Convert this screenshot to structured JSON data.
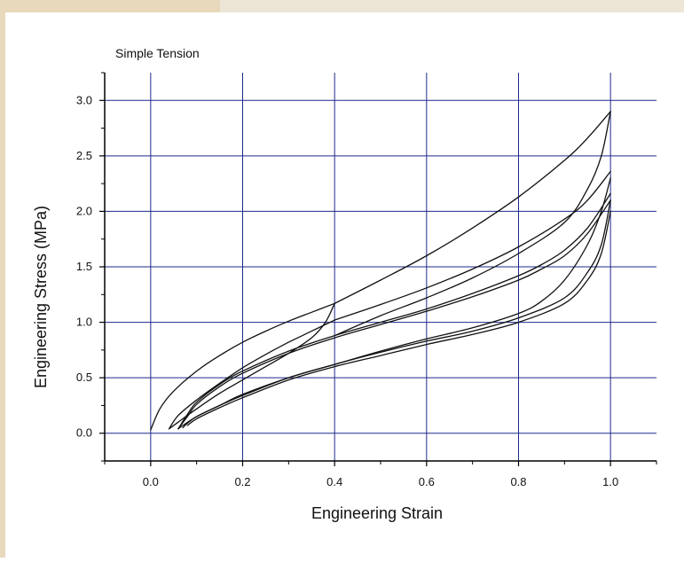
{
  "colors": {
    "frame": "#e8d8bc",
    "grid": "#1e2a8c",
    "curve": "#111111",
    "background": "#ffffff"
  },
  "chart_data": {
    "type": "line",
    "title": "Simple Tension",
    "xlabel": "Engineering Strain",
    "ylabel": "Engineering Stress (MPa)",
    "xlim": [
      -0.1,
      1.1
    ],
    "ylim": [
      -0.25,
      3.25
    ],
    "x_ticks": [
      0.0,
      0.2,
      0.4,
      0.6,
      0.8,
      1.0
    ],
    "x_tick_labels": [
      "0.0",
      "0.2",
      "0.4",
      "0.6",
      "0.8",
      "1.0"
    ],
    "y_ticks": [
      0.0,
      0.5,
      1.0,
      1.5,
      2.0,
      2.5,
      3.0
    ],
    "y_tick_labels": [
      "0.0",
      "0.5",
      "1.0",
      "1.5",
      "2.0",
      "2.5",
      "3.0"
    ],
    "grid": true,
    "series": [
      {
        "x": [
          0.0,
          0.02,
          0.05,
          0.1,
          0.15,
          0.2,
          0.25,
          0.3,
          0.35,
          0.4
        ],
        "y": [
          0.03,
          0.22,
          0.38,
          0.56,
          0.7,
          0.82,
          0.92,
          1.01,
          1.09,
          1.17
        ]
      },
      {
        "x": [
          0.4,
          0.5,
          0.6,
          0.7,
          0.8,
          0.9,
          0.95,
          1.0
        ],
        "y": [
          1.17,
          1.38,
          1.6,
          1.85,
          2.13,
          2.46,
          2.66,
          2.9
        ]
      },
      {
        "x": [
          1.0,
          0.98,
          0.95,
          0.9,
          0.8,
          0.7,
          0.6,
          0.5,
          0.4
        ],
        "y": [
          2.9,
          2.5,
          2.2,
          1.9,
          1.62,
          1.4,
          1.22,
          1.06,
          0.88
        ]
      },
      {
        "x": [
          0.4,
          0.38,
          0.35,
          0.3,
          0.25,
          0.2,
          0.15,
          0.1,
          0.06,
          0.04
        ],
        "y": [
          1.17,
          1.0,
          0.86,
          0.72,
          0.6,
          0.48,
          0.36,
          0.22,
          0.1,
          0.04
        ]
      },
      {
        "x": [
          0.04,
          0.06,
          0.1,
          0.15,
          0.2,
          0.25,
          0.3,
          0.35,
          0.4
        ],
        "y": [
          0.04,
          0.16,
          0.3,
          0.45,
          0.59,
          0.71,
          0.82,
          0.92,
          1.02
        ]
      },
      {
        "x": [
          0.4,
          0.5,
          0.6,
          0.7,
          0.8,
          0.9,
          0.95,
          1.0
        ],
        "y": [
          1.02,
          1.16,
          1.31,
          1.48,
          1.68,
          1.93,
          2.1,
          2.36
        ]
      },
      {
        "x": [
          1.0,
          0.98,
          0.95,
          0.9,
          0.85,
          0.8,
          0.7,
          0.6,
          0.5,
          0.4,
          0.3,
          0.2,
          0.15,
          0.1,
          0.07,
          0.06
        ],
        "y": [
          2.3,
          2.0,
          1.7,
          1.38,
          1.19,
          1.08,
          0.95,
          0.85,
          0.74,
          0.62,
          0.5,
          0.35,
          0.25,
          0.15,
          0.07,
          0.04
        ]
      },
      {
        "x": [
          0.06,
          0.08,
          0.1,
          0.15,
          0.2,
          0.3,
          0.4,
          0.5,
          0.6,
          0.7,
          0.8,
          0.85,
          0.9,
          0.95,
          1.0
        ],
        "y": [
          0.04,
          0.15,
          0.26,
          0.42,
          0.54,
          0.72,
          0.86,
          0.98,
          1.1,
          1.23,
          1.38,
          1.48,
          1.6,
          1.8,
          2.1
        ]
      },
      {
        "x": [
          0.06,
          0.08,
          0.1,
          0.15,
          0.2,
          0.3,
          0.4,
          0.5,
          0.6,
          0.7,
          0.8,
          0.85,
          0.9,
          0.95,
          1.0
        ],
        "y": [
          0.04,
          0.17,
          0.28,
          0.44,
          0.56,
          0.74,
          0.88,
          1.0,
          1.12,
          1.26,
          1.42,
          1.52,
          1.65,
          1.85,
          2.16
        ]
      },
      {
        "x": [
          1.0,
          0.98,
          0.95,
          0.9,
          0.8,
          0.7,
          0.6,
          0.5,
          0.4,
          0.3,
          0.2,
          0.15,
          0.1,
          0.08,
          0.07
        ],
        "y": [
          2.1,
          1.7,
          1.45,
          1.22,
          1.04,
          0.92,
          0.83,
          0.73,
          0.62,
          0.5,
          0.34,
          0.25,
          0.15,
          0.09,
          0.05
        ]
      },
      {
        "x": [
          1.0,
          0.98,
          0.95,
          0.9,
          0.8,
          0.7,
          0.6,
          0.5,
          0.4,
          0.3,
          0.2,
          0.15,
          0.1,
          0.08
        ],
        "y": [
          2.0,
          1.62,
          1.38,
          1.17,
          1.0,
          0.89,
          0.8,
          0.7,
          0.6,
          0.48,
          0.32,
          0.23,
          0.13,
          0.07
        ]
      }
    ]
  }
}
